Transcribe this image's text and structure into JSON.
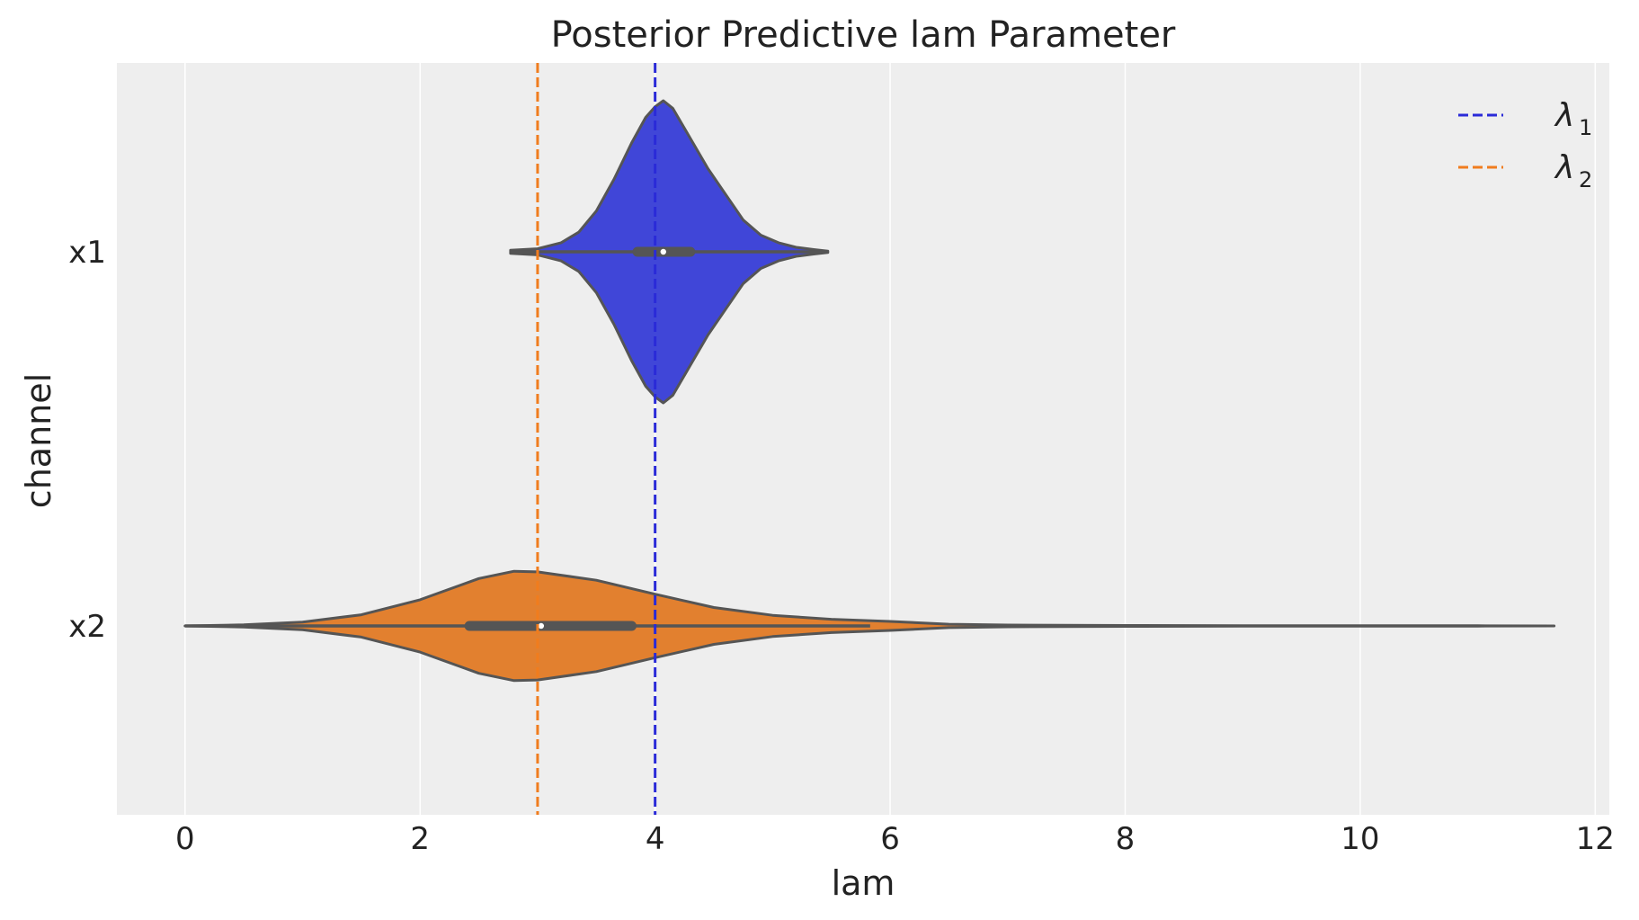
{
  "chart_data": {
    "type": "violin",
    "title": "Posterior Predictive lam Parameter",
    "xlabel": "lam",
    "ylabel": "channel",
    "xlim": [
      -0.58,
      12.12
    ],
    "xticks": [
      0,
      2,
      4,
      6,
      8,
      10,
      12
    ],
    "xtick_labels": [
      "0",
      "2",
      "4",
      "6",
      "8",
      "10",
      "12"
    ],
    "categories": [
      "x1",
      "x2"
    ],
    "grid": "vertical, white on light gray",
    "colors": {
      "background": "#eeeeee",
      "grid": "#ffffff",
      "outline": "#555555",
      "x1": "#4046d8",
      "x2": "#e2802f",
      "lambda1_line": "#2a2ad8",
      "lambda2_line": "#f07c1e"
    },
    "violins": [
      {
        "category": "x1",
        "color": "#4046d8",
        "median": 4.07,
        "q1": 3.85,
        "q3": 4.3,
        "whisker_low": 2.77,
        "whisker_high": 5.47,
        "density": [
          [
            2.77,
            0.01
          ],
          [
            3.0,
            0.02
          ],
          [
            3.2,
            0.06
          ],
          [
            3.35,
            0.13
          ],
          [
            3.5,
            0.27
          ],
          [
            3.65,
            0.48
          ],
          [
            3.8,
            0.72
          ],
          [
            3.92,
            0.89
          ],
          [
            4.0,
            0.96
          ],
          [
            4.07,
            1.0
          ],
          [
            4.15,
            0.95
          ],
          [
            4.3,
            0.75
          ],
          [
            4.45,
            0.55
          ],
          [
            4.6,
            0.38
          ],
          [
            4.75,
            0.21
          ],
          [
            4.9,
            0.11
          ],
          [
            5.05,
            0.06
          ],
          [
            5.2,
            0.03
          ],
          [
            5.35,
            0.015
          ],
          [
            5.47,
            0.005
          ]
        ]
      },
      {
        "category": "x2",
        "color": "#e2802f",
        "median": 3.03,
        "q1": 2.42,
        "q3": 3.8,
        "whisker_low": 0.0,
        "whisker_high": 5.83,
        "density": [
          [
            0.0,
            0.0
          ],
          [
            0.5,
            0.02
          ],
          [
            1.0,
            0.07
          ],
          [
            1.5,
            0.2
          ],
          [
            2.0,
            0.47
          ],
          [
            2.5,
            0.85
          ],
          [
            2.8,
            0.98
          ],
          [
            3.0,
            0.97
          ],
          [
            3.5,
            0.82
          ],
          [
            4.0,
            0.57
          ],
          [
            4.5,
            0.33
          ],
          [
            5.0,
            0.19
          ],
          [
            5.5,
            0.12
          ],
          [
            6.0,
            0.08
          ],
          [
            6.5,
            0.03
          ],
          [
            7.0,
            0.016
          ],
          [
            8.0,
            0.008
          ],
          [
            9.0,
            0.005
          ],
          [
            10.0,
            0.004
          ],
          [
            11.0,
            0.003
          ],
          [
            11.65,
            0.0
          ]
        ]
      }
    ],
    "reference_lines": [
      {
        "x": 4.0,
        "color": "#2a2ad8",
        "style": "dashed",
        "label_sym": "λ",
        "label_sub": "1"
      },
      {
        "x": 3.0,
        "color": "#f07c1e",
        "style": "dashed",
        "label_sym": "λ",
        "label_sub": "2"
      }
    ],
    "legend": "top-right"
  }
}
